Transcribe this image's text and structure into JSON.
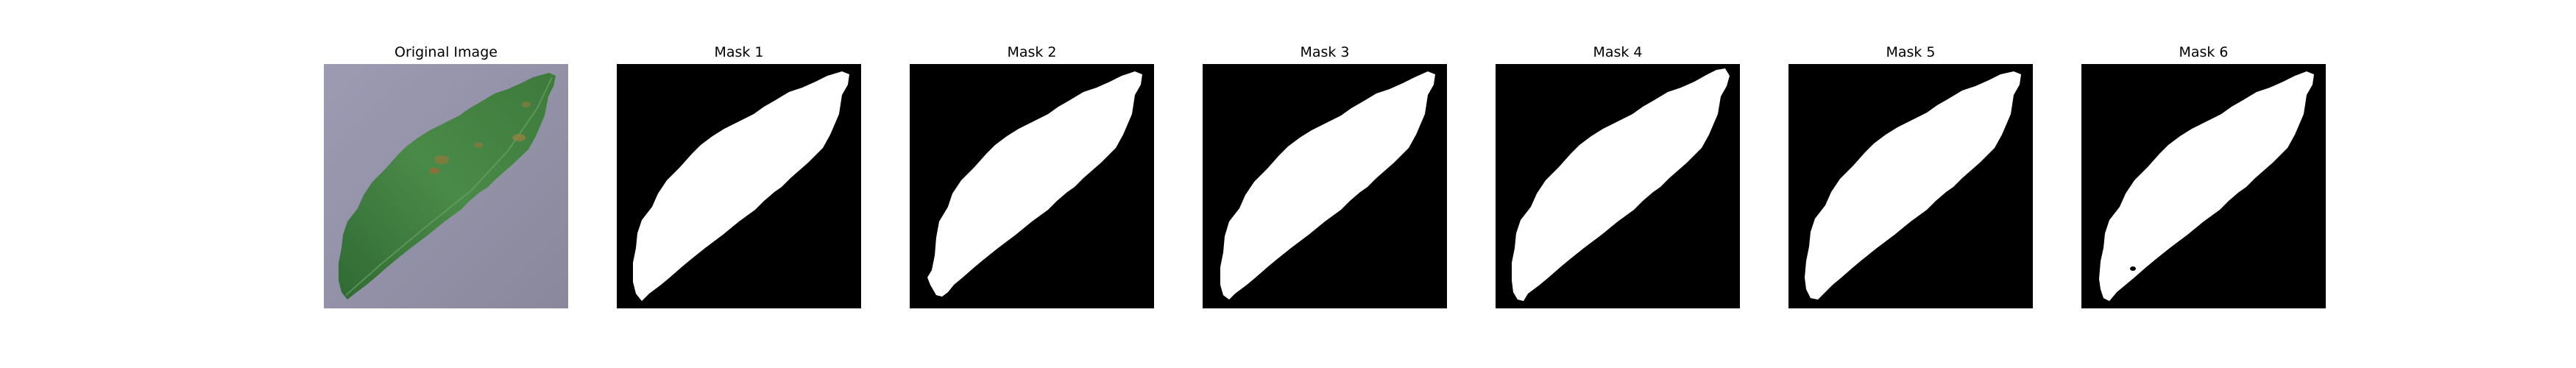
{
  "figure": {
    "panels": [
      {
        "title": "Original Image"
      },
      {
        "title": "Mask 1"
      },
      {
        "title": "Mask 2"
      },
      {
        "title": "Mask 3"
      },
      {
        "title": "Mask 4"
      },
      {
        "title": "Mask 5"
      },
      {
        "title": "Mask 6"
      }
    ]
  },
  "colors": {
    "background": "#8f8da3",
    "leaf": "#3f7d3f",
    "mask_background": "#000000",
    "mask_foreground": "#ffffff"
  }
}
